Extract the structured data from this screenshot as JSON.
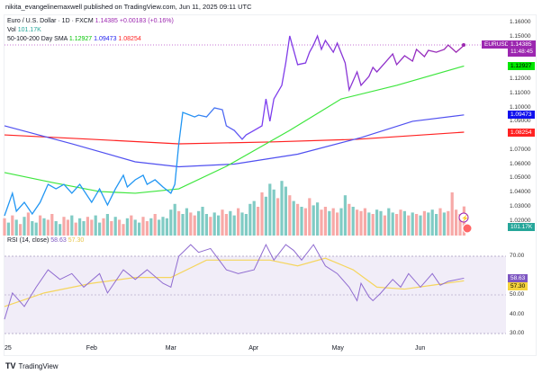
{
  "publisher": "nikita_evangelinemaxwell published on TradingView.com, Jun 11, 2025 09:11 UTC",
  "legend": {
    "symbol": "Euro / U.S. Dollar · 1D · FXCM",
    "price": "1.14385",
    "change": "+0.00183 (+0.16%)",
    "vol_label": "Vol",
    "vol": "101.17K",
    "sma_label": "50-100-200 Day SMA",
    "sma50": "1.12927",
    "sma100": "1.09473",
    "sma200": "1.08254",
    "rsi_label": "RSI (14, close)",
    "rsi": "58.63",
    "rsi_ma": "57.30"
  },
  "tags": {
    "symbol": "EURUSD",
    "price": "1.14385",
    "countdown": "11:48:45",
    "vol": "101.17K"
  },
  "colors": {
    "purple": "#9c27b0",
    "green": "#00e600",
    "blue": "#1010ee",
    "red": "#f22",
    "up": "#80cbc4",
    "down": "#f7a9a7",
    "rsi": "#7e57c2",
    "rsi_ma": "#f5d55d"
  },
  "footer": {
    "brand": "TradingView"
  },
  "chart_data": [
    {
      "type": "line",
      "title": "EUR/USD 1D",
      "ylim": [
        1.015,
        1.165
      ],
      "yticks": [
        "1.16000",
        "1.15000",
        "1.12000",
        "1.11000",
        "1.10000",
        "1.09000",
        "1.07000",
        "1.06000",
        "1.05000",
        "1.04000",
        "1.03000",
        "1.02000"
      ],
      "xticks": [
        {
          "label": "25",
          "day": 0
        },
        {
          "label": "Feb",
          "day": 22
        },
        {
          "label": "Mar",
          "day": 42
        },
        {
          "label": "Apr",
          "day": 63
        },
        {
          "label": "May",
          "day": 84
        },
        {
          "label": "Jun",
          "day": 105
        }
      ],
      "price": [
        [
          0,
          1.0235
        ],
        [
          2,
          1.0394
        ],
        [
          3,
          1.0267
        ],
        [
          5,
          1.033
        ],
        [
          7,
          1.0248
        ],
        [
          9,
          1.033
        ],
        [
          11,
          1.0457
        ],
        [
          13,
          1.0425
        ],
        [
          15,
          1.0457
        ],
        [
          17,
          1.0394
        ],
        [
          19,
          1.0457
        ],
        [
          22,
          1.033
        ],
        [
          24,
          1.0425
        ],
        [
          26,
          1.0311
        ],
        [
          28,
          1.0425
        ],
        [
          30,
          1.0521
        ],
        [
          31,
          1.0438
        ],
        [
          33,
          1.0489
        ],
        [
          35,
          1.0521
        ],
        [
          36,
          1.0457
        ],
        [
          38,
          1.0489
        ],
        [
          40,
          1.0438
        ],
        [
          42,
          1.0394
        ],
        [
          43,
          1.0457
        ],
        [
          44,
          1.0743
        ],
        [
          45,
          1.0965
        ],
        [
          48,
          1.0933
        ],
        [
          49,
          1.0946
        ],
        [
          51,
          1.0933
        ],
        [
          53,
          1.0997
        ],
        [
          55,
          1.0984
        ],
        [
          56,
          1.087
        ],
        [
          58,
          1.0838
        ],
        [
          60,
          1.0775
        ],
        [
          61,
          1.0806
        ],
        [
          63,
          1.0838
        ],
        [
          65,
          1.087
        ],
        [
          66,
          1.106
        ],
        [
          67,
          1.0902
        ],
        [
          68,
          1.106
        ],
        [
          70,
          1.1156
        ],
        [
          71,
          1.1314
        ],
        [
          72,
          1.1505
        ],
        [
          74,
          1.1302
        ],
        [
          76,
          1.1314
        ],
        [
          77,
          1.139
        ],
        [
          78,
          1.1441
        ],
        [
          79,
          1.1505
        ],
        [
          80,
          1.141
        ],
        [
          81,
          1.1473
        ],
        [
          83,
          1.139
        ],
        [
          84,
          1.1454
        ],
        [
          86,
          1.1314
        ],
        [
          87,
          1.1124
        ],
        [
          89,
          1.1251
        ],
        [
          90,
          1.1156
        ],
        [
          92,
          1.1219
        ],
        [
          93,
          1.1283
        ],
        [
          94,
          1.1251
        ],
        [
          96,
          1.1314
        ],
        [
          98,
          1.1378
        ],
        [
          99,
          1.1302
        ],
        [
          101,
          1.1365
        ],
        [
          103,
          1.1327
        ],
        [
          104,
          1.141
        ],
        [
          106,
          1.1359
        ],
        [
          107,
          1.1403
        ],
        [
          109,
          1.139
        ],
        [
          111,
          1.141
        ],
        [
          112,
          1.1441
        ],
        [
          114,
          1.139
        ],
        [
          116,
          1.14385
        ]
      ],
      "sma50": [
        [
          0,
          1.054
        ],
        [
          12,
          1.047
        ],
        [
          24,
          1.0406
        ],
        [
          33,
          1.0394
        ],
        [
          44,
          1.0425
        ],
        [
          56,
          1.0584
        ],
        [
          72,
          1.0838
        ],
        [
          85,
          1.106
        ],
        [
          99,
          1.1156
        ],
        [
          116,
          1.12927
        ]
      ],
      "sma100": [
        [
          0,
          1.087
        ],
        [
          17,
          1.0743
        ],
        [
          33,
          1.0616
        ],
        [
          44,
          1.0581
        ],
        [
          58,
          1.06
        ],
        [
          74,
          1.067
        ],
        [
          90,
          1.0787
        ],
        [
          103,
          1.0902
        ],
        [
          116,
          1.09473
        ]
      ],
      "sma200": [
        [
          0,
          1.0806
        ],
        [
          22,
          1.0775
        ],
        [
          44,
          1.0743
        ],
        [
          67,
          1.0756
        ],
        [
          89,
          1.0775
        ],
        [
          116,
          1.08254
        ]
      ],
      "volume_k": [
        60,
        45,
        70,
        55,
        40,
        65,
        80,
        50,
        45,
        70,
        60,
        55,
        75,
        50,
        40,
        65,
        55,
        70,
        45,
        60,
        50,
        65,
        55,
        70,
        45,
        60,
        75,
        50,
        65,
        55,
        40,
        60,
        70,
        55,
        45,
        65,
        50,
        60,
        75,
        55,
        65,
        60,
        90,
        110,
        85,
        75,
        95,
        80,
        70,
        85,
        100,
        75,
        65,
        80,
        70,
        90,
        75,
        85,
        70,
        95,
        80,
        75,
        110,
        120,
        100,
        150,
        135,
        180,
        160,
        130,
        190,
        170,
        140,
        120,
        110,
        100,
        95,
        130,
        105,
        115,
        90,
        100,
        85,
        95,
        80,
        95,
        140,
        110,
        100,
        90,
        85,
        95,
        80,
        75,
        90,
        85,
        70,
        95,
        80,
        75,
        90,
        85,
        70,
        80,
        75,
        70,
        85,
        80,
        90,
        75,
        95,
        80,
        85,
        150,
        90,
        75,
        101.17
      ],
      "volume_dir": "dudududuududduudduduudduudududduduudduduuuuuduudduuuduudduuduuuudduuuduudududduuddudduududdduduuduuddudududuuudu"
    },
    {
      "type": "line",
      "title": "RSI (14, close)",
      "ylim": [
        30,
        70
      ],
      "yticks": [
        "70.00",
        "50.00",
        "40.00",
        "30.00"
      ],
      "rsi": [
        [
          0,
          37.4
        ],
        [
          2,
          51
        ],
        [
          5,
          44
        ],
        [
          8,
          54
        ],
        [
          11,
          63
        ],
        [
          14,
          58
        ],
        [
          17,
          61
        ],
        [
          20,
          54
        ],
        [
          24,
          61
        ],
        [
          26,
          51
        ],
        [
          30,
          63
        ],
        [
          33,
          58
        ],
        [
          36,
          63
        ],
        [
          40,
          56
        ],
        [
          42,
          54
        ],
        [
          44,
          70
        ],
        [
          47,
          76
        ],
        [
          49,
          72
        ],
        [
          52,
          74
        ],
        [
          56,
          63
        ],
        [
          59,
          61
        ],
        [
          63,
          63
        ],
        [
          66,
          76
        ],
        [
          68,
          68
        ],
        [
          71,
          76
        ],
        [
          73,
          73
        ],
        [
          75,
          68
        ],
        [
          78,
          76
        ],
        [
          81,
          65
        ],
        [
          84,
          61
        ],
        [
          87,
          54
        ],
        [
          89,
          47
        ],
        [
          90,
          56
        ],
        [
          92,
          49
        ],
        [
          93,
          47
        ],
        [
          95,
          51
        ],
        [
          98,
          58
        ],
        [
          100,
          54
        ],
        [
          102,
          61
        ],
        [
          105,
          54
        ],
        [
          108,
          61
        ],
        [
          110,
          55
        ],
        [
          112,
          57
        ],
        [
          116,
          58.63
        ]
      ],
      "rsi_ma": [
        [
          0,
          44
        ],
        [
          10,
          51
        ],
        [
          22,
          56
        ],
        [
          33,
          59
        ],
        [
          42,
          59
        ],
        [
          51,
          68
        ],
        [
          58,
          68
        ],
        [
          67,
          68
        ],
        [
          74,
          65
        ],
        [
          81,
          69
        ],
        [
          88,
          63
        ],
        [
          94,
          54
        ],
        [
          101,
          53
        ],
        [
          108,
          55
        ],
        [
          116,
          57.3
        ]
      ]
    }
  ]
}
